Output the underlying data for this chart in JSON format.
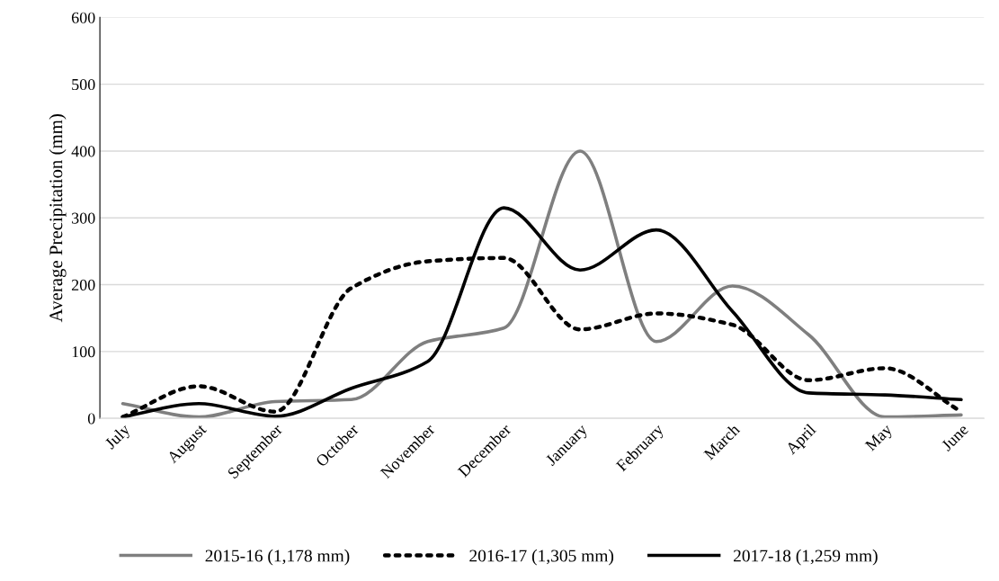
{
  "chart_data": {
    "type": "line",
    "ylabel": "Average Precipitation (mm)",
    "categories": [
      "July",
      "August",
      "September",
      "October",
      "November",
      "December",
      "January",
      "February",
      "March",
      "April",
      "May",
      "June"
    ],
    "series": [
      {
        "name": "2015-16 (1,178 mm)",
        "color": "#7f7f7f",
        "line_style": "solid",
        "values": [
          22,
          2,
          25,
          28,
          115,
          135,
          400,
          115,
          198,
          125,
          2,
          5
        ]
      },
      {
        "name": "2016-17 (1,305 mm)",
        "color": "#000000",
        "line_style": "dotted",
        "values": [
          2,
          48,
          10,
          195,
          235,
          240,
          133,
          157,
          140,
          57,
          75,
          10
        ]
      },
      {
        "name": "2017-18 (1,259 mm)",
        "color": "#000000",
        "line_style": "solid",
        "values": [
          2,
          22,
          3,
          45,
          85,
          315,
          222,
          282,
          160,
          38,
          35,
          28
        ]
      }
    ],
    "ylim": [
      0,
      600
    ],
    "yticks": [
      0,
      100,
      200,
      300,
      400,
      500,
      600
    ],
    "grid": "y",
    "legend": "bottom",
    "marker": "none"
  }
}
